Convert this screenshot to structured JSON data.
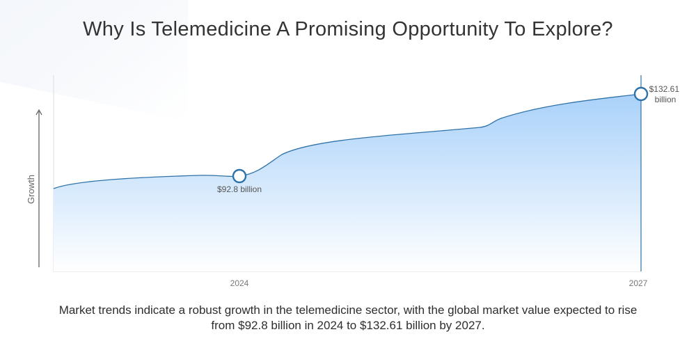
{
  "title": "Why Is Telemedicine A Promising Opportunity To Explore?",
  "caption": "Market trends indicate a robust growth in the telemedicine sector, with the global market value expected to rise from $92.8 billion in 2024 to $132.61 billion by 2027.",
  "colors": {
    "line": "#2f72a8",
    "fill_top": "#a9d1fa",
    "fill_bottom": "#ffffff",
    "axis": "#555555",
    "tick_text": "#666666",
    "marker_fill": "#ffffff"
  },
  "chart_data": {
    "type": "area",
    "title": "Why Is Telemedicine A Promising Opportunity To Explore?",
    "ylabel": "Growth",
    "xlabel": "",
    "x_ticks": [
      "2024",
      "2027"
    ],
    "grid": false,
    "legend": "none",
    "points": [
      {
        "x": 2024,
        "y": 92.8,
        "label": "$92.8 billion"
      },
      {
        "x": 2027,
        "y": 132.61,
        "label": "$132.61 billion",
        "label_lines": [
          "$132.61",
          "billion"
        ]
      }
    ]
  }
}
